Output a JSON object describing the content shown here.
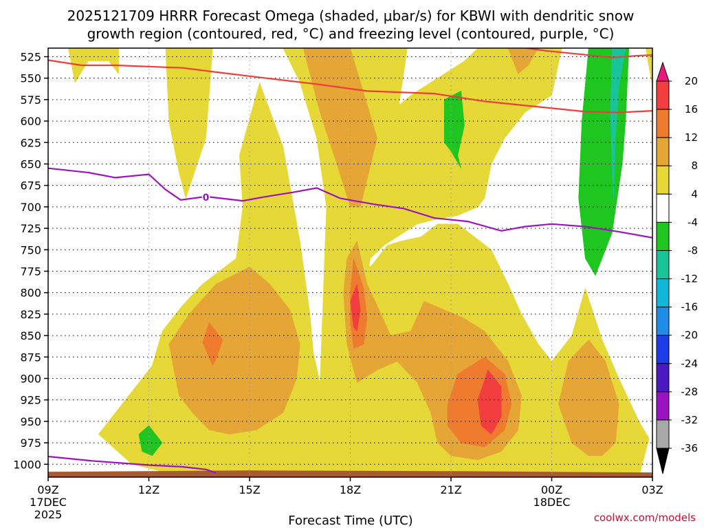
{
  "chart_data": {
    "type": "heatmap",
    "title_line1": "2025121709 HRRR Forecast Omega (shaded, μbar/s) for KBWI with dendritic snow",
    "title_line2": "growth region (contoured, red, °C) and freezing level (contoured, purple, °C)",
    "xlabel": "Forecast Time (UTC)",
    "x_ticks": [
      {
        "hour": 0,
        "label": "09Z",
        "sub1": "17DEC",
        "sub2": "2025"
      },
      {
        "hour": 3,
        "label": "12Z",
        "sub1": "",
        "sub2": ""
      },
      {
        "hour": 6,
        "label": "15Z",
        "sub1": "",
        "sub2": ""
      },
      {
        "hour": 9,
        "label": "18Z",
        "sub1": "",
        "sub2": ""
      },
      {
        "hour": 12,
        "label": "21Z",
        "sub1": "",
        "sub2": ""
      },
      {
        "hour": 15,
        "label": "00Z",
        "sub1": "18DEC",
        "sub2": ""
      },
      {
        "hour": 18,
        "label": "03Z",
        "sub1": "",
        "sub2": ""
      }
    ],
    "xlim": [
      0,
      18
    ],
    "ylim": [
      1015,
      515
    ],
    "y_ticks": [
      525,
      550,
      575,
      600,
      625,
      650,
      675,
      700,
      725,
      750,
      775,
      800,
      825,
      850,
      875,
      900,
      925,
      950,
      975,
      1000
    ],
    "grid": true,
    "colorbar": {
      "labels": [
        "20",
        "16",
        "12",
        "8",
        "4",
        "-4",
        "-8",
        "-12",
        "-16",
        "-20",
        "-24",
        "-28",
        "-32",
        "-36"
      ],
      "bins": [
        "#e8187f",
        "#f23e3e",
        "#ef7b2e",
        "#e6a636",
        "#e6d836",
        "#ffffff",
        "#1fc61f",
        "#19c499",
        "#10b7d8",
        "#1f8ce6",
        "#1f3de6",
        "#4a19c2",
        "#9b12c2",
        "#a8a8a8",
        "#000000"
      ]
    },
    "omega_regions": [
      {
        "level": "4",
        "color": "#e6d836",
        "points": [
          [
            0.6,
            515
          ],
          [
            2.1,
            515
          ],
          [
            2.1,
            545
          ],
          [
            1.8,
            530
          ],
          [
            1.2,
            530
          ],
          [
            0.8,
            555
          ]
        ]
      },
      {
        "level": "4",
        "color": "#e6d836",
        "points": [
          [
            3.5,
            515
          ],
          [
            4.9,
            515
          ],
          [
            4.7,
            620
          ],
          [
            4.1,
            690
          ],
          [
            3.9,
            660
          ],
          [
            3.6,
            600
          ]
        ]
      },
      {
        "level": "4",
        "color": "#e6d836",
        "points": [
          [
            7.0,
            515
          ],
          [
            10.7,
            515
          ],
          [
            10.4,
            595
          ],
          [
            10.0,
            672
          ],
          [
            9.5,
            782
          ],
          [
            9.2,
            810
          ],
          [
            8.9,
            770
          ],
          [
            8.4,
            730
          ],
          [
            8.0,
            620
          ],
          [
            7.5,
            555
          ]
        ]
      },
      {
        "level": "4",
        "color": "#e6d836",
        "points": [
          [
            12.8,
            515
          ],
          [
            15.3,
            515
          ],
          [
            15.0,
            570
          ],
          [
            14.2,
            590
          ],
          [
            13.6,
            620
          ],
          [
            13.2,
            650
          ],
          [
            13.0,
            690
          ],
          [
            12.8,
            700
          ],
          [
            12.2,
            710
          ],
          [
            11.5,
            715
          ],
          [
            11.0,
            720
          ],
          [
            10.6,
            730
          ],
          [
            10.0,
            745
          ],
          [
            9.6,
            760
          ],
          [
            9.2,
            760
          ],
          [
            9.0,
            745
          ],
          [
            8.8,
            700
          ],
          [
            9.0,
            650
          ],
          [
            9.6,
            620
          ],
          [
            10.2,
            590
          ],
          [
            10.8,
            570
          ],
          [
            11.6,
            550
          ],
          [
            12.4,
            530
          ]
        ]
      },
      {
        "level": "4",
        "color": "#e6d836",
        "points": [
          [
            17.8,
            515
          ],
          [
            18,
            515
          ],
          [
            18,
            560
          ]
        ]
      },
      {
        "level": "4",
        "color": "#e6d836",
        "points": [
          [
            5.7,
            640
          ],
          [
            6.3,
            555
          ],
          [
            7.0,
            630
          ],
          [
            7.5,
            740
          ],
          [
            7.8,
            825
          ],
          [
            7.9,
            870
          ],
          [
            8.1,
            905
          ],
          [
            8.3,
            690
          ],
          [
            8.5,
            640
          ],
          [
            8.9,
            710
          ],
          [
            9.2,
            755
          ],
          [
            9.6,
            770
          ],
          [
            10.1,
            745
          ],
          [
            10.5,
            740
          ],
          [
            11.1,
            735
          ],
          [
            11.6,
            720
          ],
          [
            12.2,
            720
          ],
          [
            12.7,
            735
          ],
          [
            13.2,
            750
          ],
          [
            13.7,
            790
          ],
          [
            14.1,
            825
          ],
          [
            14.6,
            860
          ],
          [
            15.0,
            880
          ],
          [
            15.6,
            850
          ],
          [
            16.0,
            795
          ],
          [
            16.5,
            855
          ],
          [
            17.0,
            900
          ],
          [
            17.6,
            950
          ],
          [
            17.9,
            970
          ],
          [
            17.6,
            1015
          ],
          [
            4.1,
            1015
          ],
          [
            2.5,
            1000
          ],
          [
            1.5,
            965
          ],
          [
            3.1,
            885
          ],
          [
            3.4,
            845
          ],
          [
            4.0,
            815
          ],
          [
            4.6,
            790
          ],
          [
            5.6,
            760
          ],
          [
            5.8,
            700
          ]
        ]
      },
      {
        "level": "8",
        "color": "#e6a636",
        "points": [
          [
            7.6,
            515
          ],
          [
            9.0,
            515
          ],
          [
            9.8,
            620
          ],
          [
            9.3,
            700
          ],
          [
            9.0,
            700
          ],
          [
            8.6,
            650
          ],
          [
            8.1,
            590
          ]
        ]
      },
      {
        "level": "8",
        "color": "#e6a636",
        "points": [
          [
            13.7,
            515
          ],
          [
            14.6,
            515
          ],
          [
            14.3,
            535
          ],
          [
            14.0,
            545
          ]
        ]
      },
      {
        "level": "8",
        "color": "#e6a636",
        "points": [
          [
            3.6,
            860
          ],
          [
            4.2,
            825
          ],
          [
            5.0,
            790
          ],
          [
            6.0,
            770
          ],
          [
            6.6,
            790
          ],
          [
            7.2,
            820
          ],
          [
            7.5,
            860
          ],
          [
            7.4,
            900
          ],
          [
            7.0,
            940
          ],
          [
            6.2,
            960
          ],
          [
            5.4,
            965
          ],
          [
            4.8,
            960
          ],
          [
            4.3,
            940
          ],
          [
            3.9,
            920
          ]
        ]
      },
      {
        "level": "8",
        "color": "#e6a636",
        "points": [
          [
            8.9,
            760
          ],
          [
            9.2,
            740
          ],
          [
            9.5,
            790
          ],
          [
            9.8,
            815
          ],
          [
            10.2,
            850
          ],
          [
            10.8,
            845
          ],
          [
            11.2,
            810
          ],
          [
            11.8,
            820
          ],
          [
            12.4,
            830
          ],
          [
            13.0,
            845
          ],
          [
            13.7,
            880
          ],
          [
            14.1,
            920
          ],
          [
            14.0,
            960
          ],
          [
            13.5,
            985
          ],
          [
            12.8,
            995
          ],
          [
            12.0,
            990
          ],
          [
            11.6,
            975
          ],
          [
            11.4,
            940
          ],
          [
            11.0,
            905
          ],
          [
            10.4,
            880
          ],
          [
            9.8,
            890
          ],
          [
            9.2,
            905
          ],
          [
            8.9,
            860
          ],
          [
            8.8,
            800
          ]
        ]
      },
      {
        "level": "8",
        "color": "#e6a636",
        "points": [
          [
            15.2,
            930
          ],
          [
            15.5,
            880
          ],
          [
            16.1,
            855
          ],
          [
            16.6,
            880
          ],
          [
            17.0,
            930
          ],
          [
            16.9,
            975
          ],
          [
            16.5,
            990
          ],
          [
            16.1,
            990
          ],
          [
            15.6,
            975
          ]
        ]
      },
      {
        "level": "12",
        "color": "#ef7b2e",
        "points": [
          [
            4.6,
            858
          ],
          [
            4.8,
            835
          ],
          [
            5.2,
            855
          ],
          [
            5.0,
            878
          ],
          [
            4.9,
            885
          ]
        ]
      },
      {
        "level": "12",
        "color": "#ef7b2e",
        "points": [
          [
            9.0,
            800
          ],
          [
            9.1,
            760
          ],
          [
            9.4,
            795
          ],
          [
            9.5,
            830
          ],
          [
            9.4,
            860
          ],
          [
            9.1,
            865
          ],
          [
            9.0,
            835
          ]
        ]
      },
      {
        "level": "12",
        "color": "#ef7b2e",
        "points": [
          [
            11.9,
            930
          ],
          [
            12.2,
            895
          ],
          [
            13.0,
            875
          ],
          [
            13.6,
            895
          ],
          [
            13.8,
            930
          ],
          [
            13.6,
            960
          ],
          [
            13.0,
            980
          ],
          [
            12.3,
            975
          ],
          [
            11.9,
            955
          ]
        ]
      },
      {
        "level": "16",
        "color": "#f23e3e",
        "points": [
          [
            9.0,
            810
          ],
          [
            9.2,
            790
          ],
          [
            9.3,
            820
          ],
          [
            9.2,
            845
          ],
          [
            9.1,
            840
          ]
        ]
      },
      {
        "level": "16",
        "color": "#f23e3e",
        "points": [
          [
            12.8,
            925
          ],
          [
            13.1,
            890
          ],
          [
            13.5,
            910
          ],
          [
            13.5,
            945
          ],
          [
            13.2,
            965
          ],
          [
            12.9,
            955
          ]
        ]
      },
      {
        "level": "-4",
        "color": "#1fc61f",
        "points": [
          [
            11.8,
            575
          ],
          [
            12.3,
            565
          ],
          [
            12.4,
            605
          ],
          [
            12.2,
            640
          ],
          [
            12.3,
            655
          ],
          [
            12.0,
            635
          ],
          [
            11.8,
            625
          ]
        ]
      },
      {
        "level": "-4",
        "color": "#1fc61f",
        "points": [
          [
            16.1,
            515
          ],
          [
            17.3,
            515
          ],
          [
            17.2,
            600
          ],
          [
            17.1,
            650
          ],
          [
            16.8,
            730
          ],
          [
            16.3,
            780
          ],
          [
            16.0,
            760
          ],
          [
            15.8,
            690
          ],
          [
            15.9,
            600
          ]
        ]
      },
      {
        "level": "-4",
        "color": "#1fc61f",
        "points": [
          [
            2.7,
            965
          ],
          [
            3.0,
            955
          ],
          [
            3.4,
            975
          ],
          [
            3.1,
            990
          ],
          [
            2.8,
            985
          ]
        ]
      },
      {
        "level": "-8",
        "color": "#19c499",
        "points": [
          [
            16.8,
            515
          ],
          [
            17.2,
            515
          ],
          [
            17.0,
            560
          ],
          [
            16.9,
            620
          ],
          [
            16.85,
            690
          ],
          [
            16.8,
            660
          ],
          [
            16.75,
            590
          ]
        ]
      }
    ],
    "terrain": {
      "color": "#a85a30",
      "top_hpa": 1008
    },
    "freezing_level": {
      "color": "#9b12c2",
      "upper_label": "0",
      "upper": [
        [
          0,
          655
        ],
        [
          1.2,
          660
        ],
        [
          2.0,
          666
        ],
        [
          3.0,
          662
        ],
        [
          3.5,
          680
        ],
        [
          3.95,
          692
        ],
        [
          4.7,
          688
        ],
        [
          5.8,
          693
        ],
        [
          6.5,
          688
        ],
        [
          7.3,
          683
        ],
        [
          8.0,
          678
        ],
        [
          8.7,
          690
        ],
        [
          9.7,
          697
        ],
        [
          10.6,
          702
        ],
        [
          11.5,
          713
        ],
        [
          12.5,
          717
        ],
        [
          13.5,
          728
        ],
        [
          14.2,
          723
        ],
        [
          15.0,
          720
        ],
        [
          16.0,
          723
        ],
        [
          17.0,
          729
        ],
        [
          18,
          736
        ]
      ],
      "lower": [
        [
          0,
          991
        ],
        [
          1.3,
          996
        ],
        [
          3.0,
          1001
        ],
        [
          4.0,
          1003
        ],
        [
          4.7,
          1006
        ],
        [
          5.0,
          1010
        ]
      ]
    },
    "dgz_red": {
      "color": "#ef3c3c",
      "lines": [
        [
          [
            0,
            529
          ],
          [
            1.0,
            535
          ],
          [
            2.0,
            535
          ],
          [
            4.0,
            538
          ],
          [
            5.0,
            543
          ],
          [
            6.5,
            550
          ],
          [
            8.0,
            557
          ],
          [
            9.5,
            565
          ],
          [
            11.5,
            568
          ],
          [
            13.0,
            577
          ],
          [
            14.5,
            583
          ],
          [
            16.0,
            589
          ],
          [
            17.0,
            590
          ],
          [
            18,
            588
          ]
        ],
        [
          [
            13.9,
            513
          ],
          [
            14.8,
            518
          ],
          [
            15.8,
            522
          ],
          [
            16.8,
            526
          ],
          [
            17.5,
            524
          ],
          [
            18,
            523
          ]
        ]
      ]
    },
    "credit": "coolwx.com/models"
  }
}
